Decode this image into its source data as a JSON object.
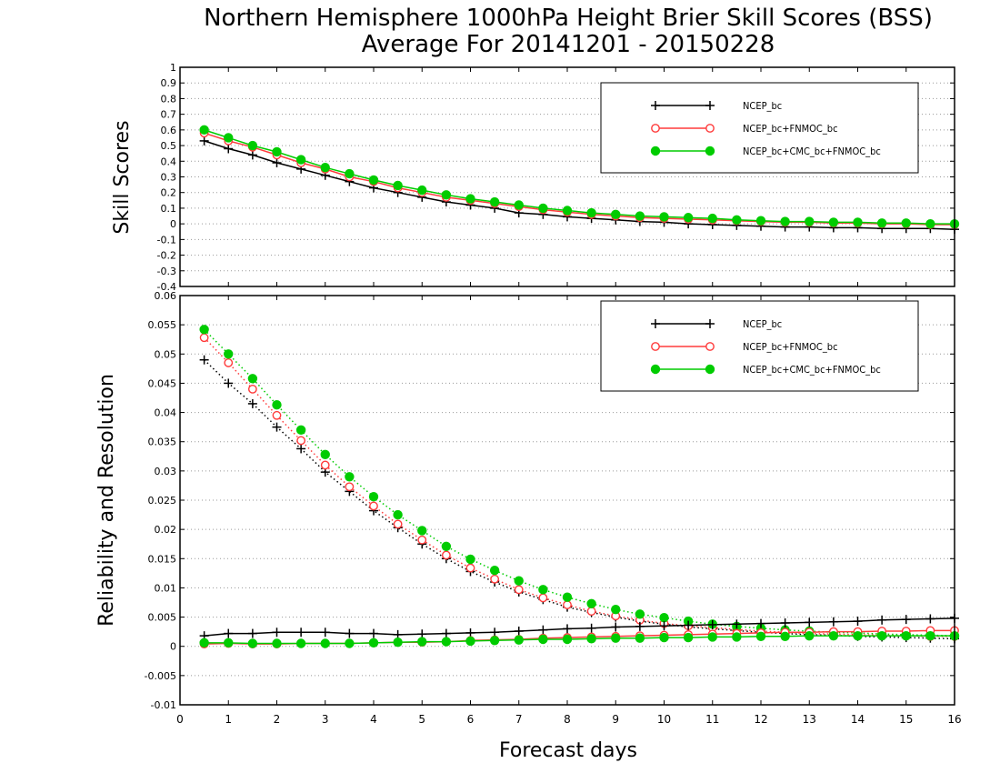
{
  "title": {
    "line1": "Northern Hemisphere 1000hPa Height Brier Skill Scores (BSS)",
    "line2": "Average For 20141201 - 20150228"
  },
  "xlabel": "Forecast days",
  "colors": {
    "ncep": "#000000",
    "fnmoc": "#ff3b3b",
    "cmc": "#00cc00"
  },
  "chart_data": [
    {
      "type": "line",
      "ylabel": "Skill Scores",
      "ylim": [
        -0.4,
        1
      ],
      "xlim": [
        0,
        16
      ],
      "grid": true,
      "legend_position": "top-right",
      "x": [
        0.5,
        1,
        1.5,
        2,
        2.5,
        3,
        3.5,
        4,
        4.5,
        5,
        5.5,
        6,
        6.5,
        7,
        7.5,
        8,
        8.5,
        9,
        9.5,
        10,
        10.5,
        11,
        11.5,
        12,
        12.5,
        13,
        13.5,
        14,
        14.5,
        15,
        15.5,
        16
      ],
      "y_ticks": [
        "-0.4",
        "-0.3",
        "-0.2",
        "-0.1",
        "0",
        "0.1",
        "0.2",
        "0.3",
        "0.4",
        "0.5",
        "0.6",
        "0.7",
        "0.8",
        "0.9",
        "1"
      ],
      "x_ticks": [
        "0",
        "1",
        "2",
        "3",
        "4",
        "5",
        "6",
        "7",
        "8",
        "9",
        "10",
        "11",
        "12",
        "13",
        "14",
        "15",
        "16"
      ],
      "series": [
        {
          "name": "NCEP_bc",
          "color": "#000000",
          "marker": "plus",
          "line": "solid",
          "values": [
            0.53,
            0.48,
            0.44,
            0.39,
            0.35,
            0.31,
            0.27,
            0.23,
            0.2,
            0.17,
            0.14,
            0.12,
            0.1,
            0.07,
            0.06,
            0.045,
            0.035,
            0.025,
            0.015,
            0.01,
            0.0,
            -0.005,
            -0.01,
            -0.015,
            -0.02,
            -0.02,
            -0.025,
            -0.025,
            -0.03,
            -0.03,
            -0.03,
            -0.035
          ]
        },
        {
          "name": "NCEP_bc+FNMOC_bc",
          "color": "#ff3b3b",
          "marker": "circle-open",
          "line": "solid",
          "values": [
            0.58,
            0.53,
            0.49,
            0.44,
            0.39,
            0.35,
            0.3,
            0.27,
            0.23,
            0.2,
            0.17,
            0.15,
            0.13,
            0.11,
            0.09,
            0.075,
            0.06,
            0.05,
            0.04,
            0.035,
            0.03,
            0.025,
            0.02,
            0.015,
            0.01,
            0.01,
            0.005,
            0.005,
            0.0,
            0.0,
            -0.005,
            -0.005
          ]
        },
        {
          "name": "NCEP_bc+CMC_bc+FNMOC_bc",
          "color": "#00cc00",
          "marker": "circle-filled",
          "line": "solid",
          "values": [
            0.6,
            0.55,
            0.5,
            0.46,
            0.41,
            0.36,
            0.32,
            0.28,
            0.245,
            0.215,
            0.185,
            0.16,
            0.14,
            0.12,
            0.1,
            0.085,
            0.07,
            0.06,
            0.05,
            0.045,
            0.04,
            0.035,
            0.025,
            0.02,
            0.015,
            0.015,
            0.01,
            0.01,
            0.005,
            0.005,
            0.0,
            0.0
          ]
        }
      ]
    },
    {
      "type": "line",
      "ylabel": "Reliability and Resolution",
      "ylim": [
        -0.01,
        0.06
      ],
      "xlim": [
        0,
        16
      ],
      "grid": true,
      "legend_position": "top-right",
      "x": [
        0.5,
        1,
        1.5,
        2,
        2.5,
        3,
        3.5,
        4,
        4.5,
        5,
        5.5,
        6,
        6.5,
        7,
        7.5,
        8,
        8.5,
        9,
        9.5,
        10,
        10.5,
        11,
        11.5,
        12,
        12.5,
        13,
        13.5,
        14,
        14.5,
        15,
        15.5,
        16
      ],
      "y_ticks": [
        "-0.01",
        "-0.005",
        "0",
        "0.005",
        "0.01",
        "0.015",
        "0.02",
        "0.025",
        "0.03",
        "0.035",
        "0.04",
        "0.045",
        "0.05",
        "0.055",
        "0.06"
      ],
      "x_ticks": [
        "0",
        "1",
        "2",
        "3",
        "4",
        "5",
        "6",
        "7",
        "8",
        "9",
        "10",
        "11",
        "12",
        "13",
        "14",
        "15",
        "16"
      ],
      "series": [
        {
          "name": "NCEP_bc",
          "color": "#000000",
          "marker": "plus",
          "line": "dotted",
          "kind": "resolution",
          "values": [
            0.049,
            0.045,
            0.0415,
            0.0375,
            0.0338,
            0.0298,
            0.0265,
            0.0232,
            0.0203,
            0.0175,
            0.015,
            0.0128,
            0.011,
            0.0093,
            0.008,
            0.0067,
            0.0058,
            0.005,
            0.0043,
            0.0038,
            0.0033,
            0.003,
            0.0027,
            0.0024,
            0.0022,
            0.002,
            0.0019,
            0.0017,
            0.0016,
            0.0015,
            0.0014,
            0.0013
          ]
        },
        {
          "name": "NCEP_bc+FNMOC_bc",
          "color": "#ff3b3b",
          "marker": "circle-open",
          "line": "dotted",
          "kind": "resolution",
          "values": [
            0.0528,
            0.0485,
            0.044,
            0.0395,
            0.0352,
            0.031,
            0.0273,
            0.024,
            0.0209,
            0.0182,
            0.0156,
            0.0134,
            0.0115,
            0.0097,
            0.0083,
            0.0071,
            0.006,
            0.0052,
            0.0045,
            0.0039,
            0.0035,
            0.0032,
            0.0029,
            0.0026,
            0.0024,
            0.0022,
            0.0021,
            0.002,
            0.0019,
            0.0018,
            0.0017,
            0.0017
          ]
        },
        {
          "name": "NCEP_bc+CMC_bc+FNMOC_bc",
          "color": "#00cc00",
          "marker": "circle-filled",
          "line": "dotted",
          "kind": "resolution",
          "values": [
            0.0542,
            0.05,
            0.0458,
            0.0413,
            0.037,
            0.0328,
            0.029,
            0.0256,
            0.0225,
            0.0198,
            0.0171,
            0.0149,
            0.013,
            0.0112,
            0.0097,
            0.0084,
            0.0073,
            0.0063,
            0.0055,
            0.0049,
            0.0043,
            0.0038,
            0.0034,
            0.0031,
            0.0028,
            0.0026,
            0.0024,
            0.0023,
            0.0021,
            0.002,
            0.0019,
            0.0018
          ]
        },
        {
          "name": "NCEP_bc",
          "color": "#000000",
          "marker": "plus",
          "line": "solid",
          "kind": "reliability",
          "values": [
            0.0018,
            0.0022,
            0.0022,
            0.0024,
            0.0024,
            0.0024,
            0.0022,
            0.0022,
            0.002,
            0.0021,
            0.0022,
            0.0023,
            0.0024,
            0.0026,
            0.0028,
            0.003,
            0.0031,
            0.0033,
            0.0034,
            0.0035,
            0.0036,
            0.0037,
            0.0038,
            0.0039,
            0.004,
            0.0041,
            0.0042,
            0.0043,
            0.0045,
            0.0046,
            0.0047,
            0.0048
          ]
        },
        {
          "name": "NCEP_bc+FNMOC_bc",
          "color": "#ff3b3b",
          "marker": "circle-open",
          "line": "solid",
          "kind": "reliability",
          "values": [
            0.0004,
            0.0005,
            0.0004,
            0.0004,
            0.0005,
            0.0005,
            0.0005,
            0.0006,
            0.0007,
            0.0007,
            0.0008,
            0.001,
            0.0011,
            0.0012,
            0.0014,
            0.0015,
            0.0016,
            0.0017,
            0.0018,
            0.0019,
            0.002,
            0.0021,
            0.0022,
            0.0023,
            0.0024,
            0.0024,
            0.0025,
            0.0025,
            0.0026,
            0.0026,
            0.0027,
            0.0027
          ]
        },
        {
          "name": "NCEP_bc+CMC_bc+FNMOC_bc",
          "color": "#00cc00",
          "marker": "circle-filled",
          "line": "solid",
          "kind": "reliability",
          "values": [
            0.0006,
            0.0006,
            0.0005,
            0.0005,
            0.0005,
            0.0005,
            0.0005,
            0.0006,
            0.0007,
            0.0008,
            0.0008,
            0.0009,
            0.001,
            0.0011,
            0.0012,
            0.0012,
            0.0013,
            0.0014,
            0.0014,
            0.0015,
            0.0015,
            0.0016,
            0.0016,
            0.0017,
            0.0017,
            0.0018,
            0.0018,
            0.0018,
            0.0018,
            0.0018,
            0.0018,
            0.0018
          ]
        }
      ]
    }
  ],
  "legends": [
    {
      "entries": [
        "NCEP_bc",
        "NCEP_bc+FNMOC_bc",
        "NCEP_bc+CMC_bc+FNMOC_bc"
      ]
    },
    {
      "entries": [
        "NCEP_bc",
        "NCEP_bc+FNMOC_bc",
        "NCEP_bc+CMC_bc+FNMOC_bc"
      ]
    }
  ]
}
